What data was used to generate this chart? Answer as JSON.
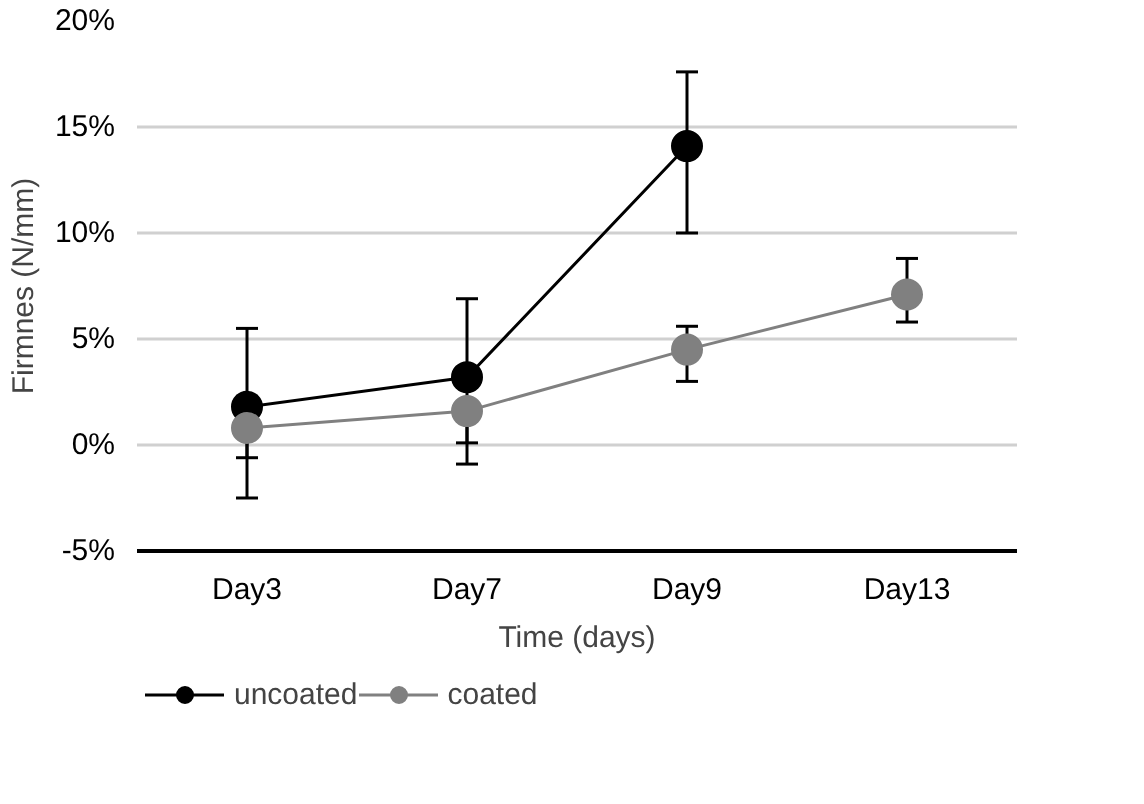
{
  "chart_data": {
    "type": "line",
    "xlabel": "Time (days)",
    "ylabel": "Firmnes (N/mm)",
    "categories": [
      "Day3",
      "Day7",
      "Day9",
      "Day13"
    ],
    "series": [
      {
        "name": "uncoated",
        "color": "#000000",
        "values": [
          1.8,
          3.2,
          14.1,
          null
        ],
        "errors": [
          [
            -2.5,
            5.5
          ],
          [
            -0.9,
            6.9
          ],
          [
            10.0,
            17.6
          ],
          null
        ]
      },
      {
        "name": "coated",
        "color": "#808080",
        "values": [
          0.8,
          1.6,
          4.5,
          7.1
        ],
        "errors": [
          [
            -0.6,
            2.3
          ],
          [
            0.1,
            1.6
          ],
          [
            3.0,
            5.6
          ],
          [
            5.8,
            8.8
          ]
        ]
      }
    ],
    "ylim": [
      -5,
      20
    ],
    "yticks": [
      {
        "value": -5,
        "label": "-5%"
      },
      {
        "value": 0,
        "label": "0%"
      },
      {
        "value": 5,
        "label": "5%"
      },
      {
        "value": 10,
        "label": "10%"
      },
      {
        "value": 15,
        "label": "15%"
      },
      {
        "value": 20,
        "label": "20%"
      }
    ],
    "grid": "y",
    "legend": "bottom left",
    "marker": "circle",
    "line_style": "solid"
  }
}
